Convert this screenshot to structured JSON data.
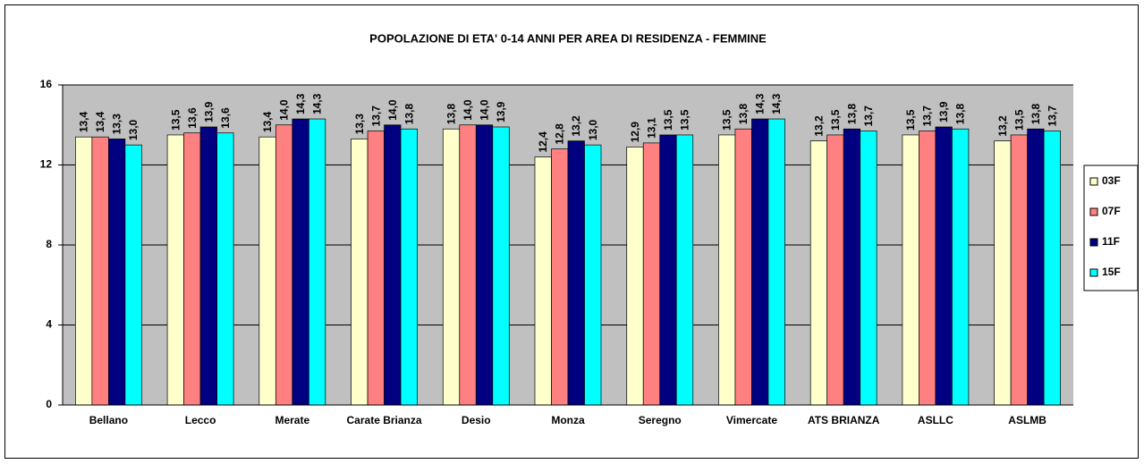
{
  "chart_data": {
    "type": "bar",
    "title": "POPOLAZIONE DI ETA' 0-14 ANNI PER AREA DI RESIDENZA - FEMMINE",
    "categories": [
      "Bellano",
      "Lecco",
      "Merate",
      "Carate Brianza",
      "Desio",
      "Monza",
      "Seregno",
      "Vimercate",
      "ATS BRIANZA",
      "ASLLC",
      "ASLMB"
    ],
    "series": [
      {
        "name": "03F",
        "color": "#ffffcc",
        "values": [
          13.4,
          13.5,
          13.4,
          13.3,
          13.8,
          12.4,
          12.9,
          13.5,
          13.2,
          13.5,
          13.2
        ],
        "value_labels": [
          "13,4",
          "13,5",
          "13,4",
          "13,3",
          "13,8",
          "12,4",
          "12,9",
          "13,5",
          "13,2",
          "13,5",
          "13,2"
        ]
      },
      {
        "name": "07F",
        "color": "#ff8080",
        "values": [
          13.4,
          13.6,
          14.0,
          13.7,
          14.0,
          12.8,
          13.1,
          13.8,
          13.5,
          13.7,
          13.5
        ],
        "value_labels": [
          "13,4",
          "13,6",
          "14,0",
          "13,7",
          "14,0",
          "12,8",
          "13,1",
          "13,8",
          "13,5",
          "13,7",
          "13,5"
        ]
      },
      {
        "name": "11F",
        "color": "#000080",
        "values": [
          13.3,
          13.9,
          14.3,
          14.0,
          14.0,
          13.2,
          13.5,
          14.3,
          13.8,
          13.9,
          13.8
        ],
        "value_labels": [
          "13,3",
          "13,9",
          "14,3",
          "14,0",
          "14,0",
          "13,2",
          "13,5",
          "14,3",
          "13,8",
          "13,9",
          "13,8"
        ]
      },
      {
        "name": "15F",
        "color": "#00ffff",
        "values": [
          13.0,
          13.6,
          14.3,
          13.8,
          13.9,
          13.0,
          13.5,
          14.3,
          13.7,
          13.8,
          13.7
        ],
        "value_labels": [
          "13,0",
          "13,6",
          "14,3",
          "13,8",
          "13,9",
          "13,0",
          "13,5",
          "14,3",
          "13,7",
          "13,8",
          "13,7"
        ]
      }
    ],
    "ylim": [
      0,
      16
    ],
    "yticks": [
      0,
      4,
      8,
      12,
      16
    ],
    "grid": true,
    "legend": "right"
  }
}
